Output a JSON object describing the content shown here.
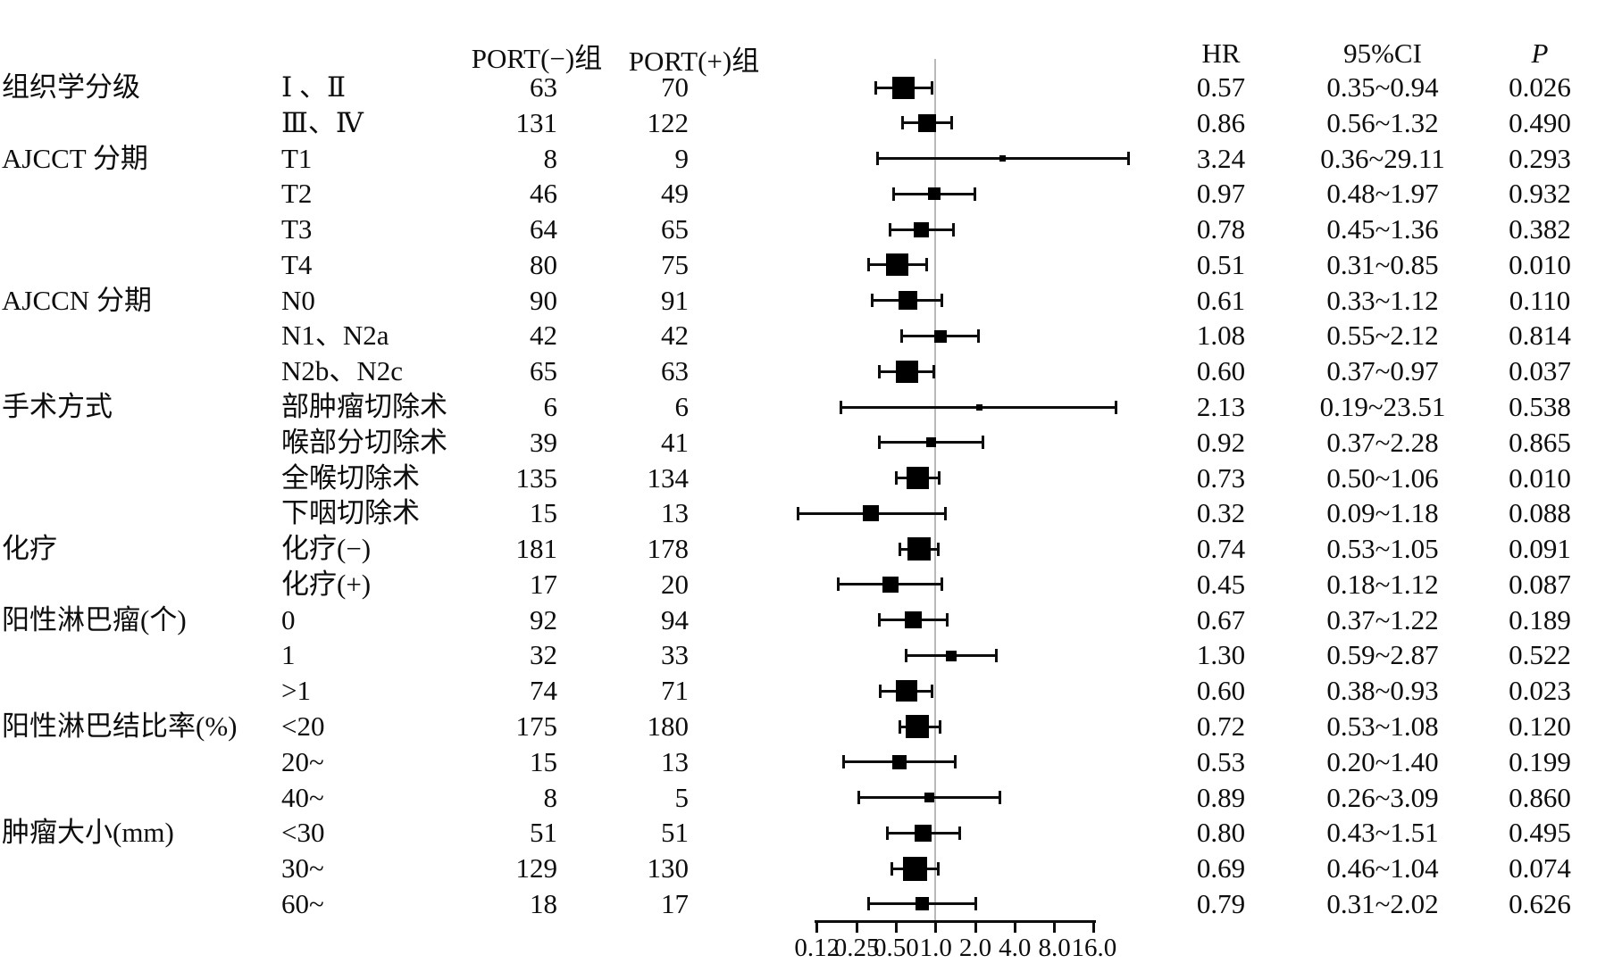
{
  "figure": {
    "columns": {
      "port_neg": "PORT(−)组",
      "port_pos": "PORT(+)组",
      "hr": "HR",
      "ci": "95%CI",
      "p": "P"
    }
  },
  "chart_data": {
    "type": "scatter",
    "variant": "forest-plot",
    "x_scale": "log2",
    "x_ticks": [
      "0.12",
      "0.25",
      "0.50",
      "1.0",
      "2.0",
      "4.0",
      "8.0",
      "16.0"
    ],
    "x_tick_values": [
      0.125,
      0.25,
      0.5,
      1,
      2,
      4,
      8,
      16
    ],
    "x_range": [
      0.125,
      16
    ],
    "reference_line": 1.0,
    "grid": false,
    "colors": {
      "marker": "#000000",
      "reference_line": "#b9b9b9",
      "text": "#0d0d0d"
    },
    "rows": [
      {
        "category": "组织学分级",
        "subgroup": "Ⅰ 、Ⅱ",
        "port_neg": "63",
        "port_pos": "70",
        "hr": "0.57",
        "ci": "0.35~0.94",
        "p": "0.026",
        "marker_size": 25
      },
      {
        "category": "",
        "subgroup": "Ⅲ、Ⅳ",
        "port_neg": "131",
        "port_pos": "122",
        "hr": "0.86",
        "ci": "0.56~1.32",
        "p": "0.490",
        "marker_size": 20
      },
      {
        "category": "AJCCT 分期",
        "subgroup": "T1",
        "port_neg": "8",
        "port_pos": "9",
        "hr": "3.24",
        "ci": "0.36~29.11",
        "p": "0.293",
        "marker_size": 7
      },
      {
        "category": "",
        "subgroup": "T2",
        "port_neg": "46",
        "port_pos": "49",
        "hr": "0.97",
        "ci": "0.48~1.97",
        "p": "0.932",
        "marker_size": 14
      },
      {
        "category": "",
        "subgroup": "T3",
        "port_neg": "64",
        "port_pos": "65",
        "hr": "0.78",
        "ci": "0.45~1.36",
        "p": "0.382",
        "marker_size": 17
      },
      {
        "category": "",
        "subgroup": "T4",
        "port_neg": "80",
        "port_pos": "75",
        "hr": "0.51",
        "ci": "0.31~0.85",
        "p": "0.010",
        "marker_size": 25
      },
      {
        "category": "AJCCN 分期",
        "subgroup": "N0",
        "port_neg": "90",
        "port_pos": "91",
        "hr": "0.61",
        "ci": "0.33~1.12",
        "p": "0.110",
        "marker_size": 21
      },
      {
        "category": "",
        "subgroup": "N1、N2a",
        "port_neg": "42",
        "port_pos": "42",
        "hr": "1.08",
        "ci": "0.55~2.12",
        "p": "0.814",
        "marker_size": 14
      },
      {
        "category": "",
        "subgroup": "N2b、N2c",
        "port_neg": "65",
        "port_pos": "63",
        "hr": "0.60",
        "ci": "0.37~0.97",
        "p": "0.037",
        "marker_size": 25
      },
      {
        "category": "手术方式",
        "subgroup": "部肿瘤切除术",
        "port_neg": "6",
        "port_pos": "6",
        "hr": "2.13",
        "ci": "0.19~23.51",
        "p": "0.538",
        "marker_size": 7
      },
      {
        "category": "",
        "subgroup": "喉部分切除术",
        "port_neg": "39",
        "port_pos": "41",
        "hr": "0.92",
        "ci": "0.37~2.28",
        "p": "0.865",
        "marker_size": 11
      },
      {
        "category": "",
        "subgroup": "全喉切除术",
        "port_neg": "135",
        "port_pos": "134",
        "hr": "0.73",
        "ci": "0.50~1.06",
        "p": "0.010",
        "marker_size": 25
      },
      {
        "category": "",
        "subgroup": "下咽切除术",
        "port_neg": "15",
        "port_pos": "13",
        "hr": "0.32",
        "ci": "0.09~1.18",
        "p": "0.088",
        "marker_size": 18
      },
      {
        "category": "化疗",
        "subgroup": "化疗(−)",
        "port_neg": "181",
        "port_pos": "178",
        "hr": "0.74",
        "ci": "0.53~1.05",
        "p": "0.091",
        "marker_size": 26
      },
      {
        "category": "",
        "subgroup": "化疗(+)",
        "port_neg": "17",
        "port_pos": "20",
        "hr": "0.45",
        "ci": "0.18~1.12",
        "p": "0.087",
        "marker_size": 18
      },
      {
        "category": "阳性淋巴瘤(个)",
        "subgroup": "0",
        "port_neg": "92",
        "port_pos": "94",
        "hr": "0.67",
        "ci": "0.37~1.22",
        "p": "0.189",
        "marker_size": 19
      },
      {
        "category": "",
        "subgroup": "1",
        "port_neg": "32",
        "port_pos": "33",
        "hr": "1.30",
        "ci": "0.59~2.87",
        "p": "0.522",
        "marker_size": 12
      },
      {
        "category": "",
        "subgroup": ">1",
        "port_neg": "74",
        "port_pos": "71",
        "hr": "0.60",
        "ci": "0.38~0.93",
        "p": "0.023",
        "marker_size": 24
      },
      {
        "category": "阳性淋巴结比率(%)",
        "subgroup": "<20",
        "port_neg": "175",
        "port_pos": "180",
        "hr": "0.72",
        "ci": "0.53~1.08",
        "p": "0.120",
        "marker_size": 26
      },
      {
        "category": "",
        "subgroup": "20~",
        "port_neg": "15",
        "port_pos": "13",
        "hr": "0.53",
        "ci": "0.20~1.40",
        "p": "0.199",
        "marker_size": 16
      },
      {
        "category": "",
        "subgroup": "40~",
        "port_neg": "8",
        "port_pos": "5",
        "hr": "0.89",
        "ci": "0.26~3.09",
        "p": "0.860",
        "marker_size": 11
      },
      {
        "category": "肿瘤大小(mm)",
        "subgroup": "<30",
        "port_neg": "51",
        "port_pos": "51",
        "hr": "0.80",
        "ci": "0.43~1.51",
        "p": "0.495",
        "marker_size": 19
      },
      {
        "category": "",
        "subgroup": "30~",
        "port_neg": "129",
        "port_pos": "130",
        "hr": "0.69",
        "ci": "0.46~1.04",
        "p": "0.074",
        "marker_size": 27
      },
      {
        "category": "",
        "subgroup": "60~",
        "port_neg": "18",
        "port_pos": "17",
        "hr": "0.79",
        "ci": "0.31~2.02",
        "p": "0.626",
        "marker_size": 15
      }
    ]
  }
}
